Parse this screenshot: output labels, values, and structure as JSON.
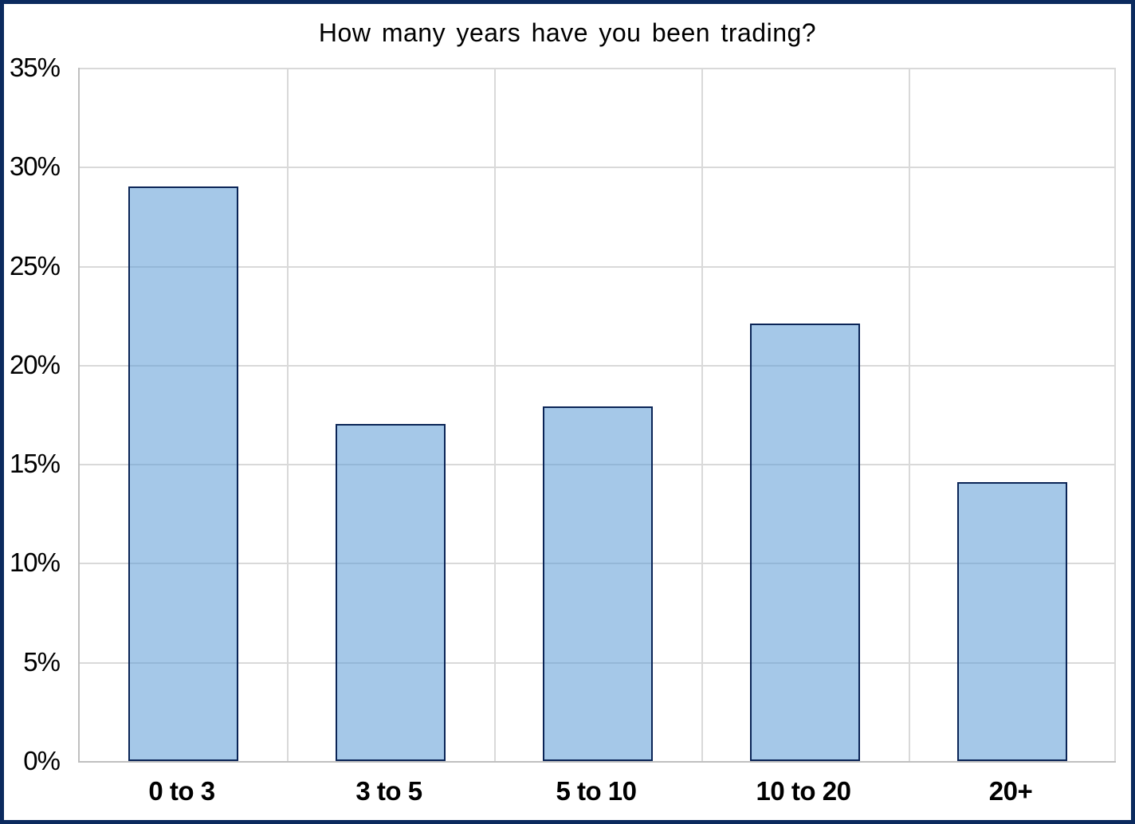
{
  "chart_data": {
    "type": "bar",
    "title": "How many years have you been trading?",
    "categories": [
      "0 to 3",
      "3 to 5",
      "5 to 10",
      "10 to 20",
      "20+"
    ],
    "values": [
      29.0,
      17.0,
      17.9,
      22.1,
      14.1
    ],
    "series_name": "",
    "xlabel": "",
    "ylabel": "",
    "y_axis": {
      "min": 0,
      "max": 35,
      "step": 5,
      "tick_labels": [
        "0%",
        "5%",
        "10%",
        "15%",
        "20%",
        "25%",
        "30%",
        "35%"
      ],
      "format": "percent"
    },
    "layout": {
      "grid": "on",
      "legend": "none",
      "bar_gap_ratio": 0.47
    },
    "colors": {
      "bar_fill": "#5B9BD5",
      "bar_fill_opacity": 0.55,
      "bar_border": "#0A2456",
      "frame_border": "#0B2A5E",
      "gridline": "#D9D9D9",
      "axis_line": "#BFBFBF",
      "text": "#000000",
      "background": "#FFFFFF"
    }
  }
}
